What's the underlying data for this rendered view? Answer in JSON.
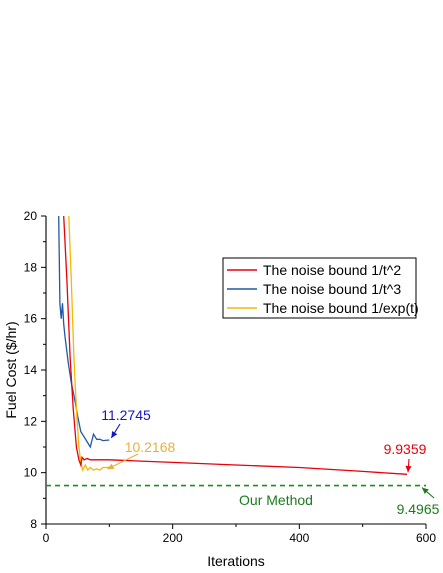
{
  "chart_data": {
    "type": "line",
    "xlabel": "Iterations",
    "ylabel": "Fuel Cost ($/hr)",
    "xlim": [
      0,
      600
    ],
    "ylim": [
      8,
      20
    ],
    "xticks": [
      0,
      200,
      400,
      600
    ],
    "yticks": [
      8,
      10,
      12,
      14,
      16,
      18,
      20
    ],
    "grid": false,
    "legend_position": "top-right",
    "series": [
      {
        "name": "The noise bound  1/t^2",
        "color": "#e8000b",
        "x": [
          28,
          33,
          38,
          43,
          48,
          52,
          55,
          57,
          60,
          65,
          70,
          80,
          100,
          150,
          200,
          300,
          400,
          500,
          570
        ],
        "y": [
          20,
          17.5,
          14.5,
          12.5,
          11.0,
          10.5,
          10.3,
          10.6,
          10.5,
          10.55,
          10.5,
          10.5,
          10.5,
          10.45,
          10.4,
          10.3,
          10.2,
          10.05,
          9.9359
        ]
      },
      {
        "name": "The noise bound  1/t^3",
        "color": "#1f5aa6",
        "x": [
          20,
          22,
          24,
          26,
          28,
          30,
          35,
          40,
          45,
          50,
          55,
          60,
          65,
          70,
          75,
          80,
          85,
          90,
          100
        ],
        "y": [
          20,
          16.6,
          16.0,
          16.6,
          15.8,
          15.3,
          14.3,
          13.5,
          12.9,
          12.2,
          11.6,
          11.4,
          11.2,
          11.0,
          11.5,
          11.3,
          11.3,
          11.25,
          11.2745
        ]
      },
      {
        "name": "The noise bound  1/exp(t)",
        "color": "#f5b800",
        "x": [
          36,
          40,
          44,
          48,
          52,
          55,
          58,
          62,
          66,
          70,
          75,
          80,
          85,
          90,
          95,
          100
        ],
        "y": [
          20,
          17.5,
          14.5,
          12.5,
          11.0,
          10.4,
          10.1,
          10.3,
          10.1,
          10.2,
          10.1,
          10.15,
          10.1,
          10.2,
          10.2,
          10.2168
        ]
      }
    ],
    "reference_line": {
      "label": "Our Method",
      "y": 9.4965,
      "color": "#1e8c1e"
    },
    "annotations": [
      {
        "text": "11.2745",
        "color": "#1414c8"
      },
      {
        "text": "10.2168",
        "color": "#e8b23c"
      },
      {
        "text": "9.9359",
        "color": "#e8000b"
      },
      {
        "text": "9.4965",
        "color": "#1e7a1e"
      },
      {
        "text": "Our Method",
        "color": "#1e7a1e"
      }
    ]
  }
}
